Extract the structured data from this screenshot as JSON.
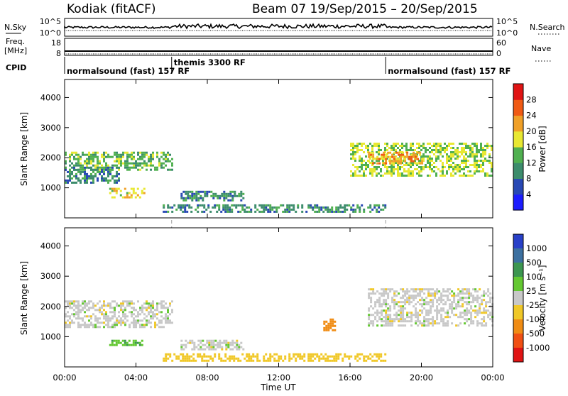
{
  "header": {
    "station": "Kodiak (fitACF)",
    "beam_info": "Beam 07  19/Sep/2015 – 20/Sep/2015"
  },
  "summary_panels": {
    "nsky_label": "N.Sky",
    "nsearch_label": "N.Search",
    "freq_label_line1": "Freq.",
    "freq_label_line2": "[MHz]",
    "nave_label": "Nave",
    "cpid_label": "CPID",
    "nsky_ticks": [
      "10^5",
      "10^0"
    ],
    "nsearch_ticks": [
      "10^5",
      "10^0"
    ],
    "freq_ticks": [
      "18",
      "8"
    ],
    "nave_ticks": [
      "60",
      "0"
    ]
  },
  "cpid_segments": [
    {
      "label": "normalsound (fast) 157 RF",
      "start_hour": 0,
      "end_hour": 6
    },
    {
      "label": "themis 3300 RF",
      "start_hour": 6,
      "end_hour": 18
    },
    {
      "label": "normalsound (fast) 157 RF",
      "start_hour": 18,
      "end_hour": 24
    }
  ],
  "chart_data": [
    {
      "type": "heatmap",
      "name": "power",
      "ylabel": "Slant Range [km]",
      "xlabel": "",
      "xlim_hours": [
        0,
        24
      ],
      "ylim": [
        0,
        4600
      ],
      "y_ticks": [
        "1000",
        "2000",
        "3000",
        "4000"
      ],
      "colorbar": {
        "label": "Power [dB]",
        "ticks": [
          "4",
          "8",
          "12",
          "16",
          "20",
          "24",
          "28"
        ],
        "colors": [
          "#1c1cff",
          "#2848b4",
          "#3c8c6c",
          "#50b050",
          "#e8e832",
          "#f0a028",
          "#f05a14",
          "#e01414"
        ]
      },
      "features": [
        {
          "t_start": 0,
          "t_end": 6,
          "range_start": 1600,
          "range_end": 2200,
          "power": 14
        },
        {
          "t_start": 0,
          "t_end": 3,
          "range_start": 1200,
          "range_end": 1700,
          "power": 10
        },
        {
          "t_start": 2.5,
          "t_end": 4.5,
          "range_start": 700,
          "range_end": 1000,
          "power": 18
        },
        {
          "t_start": 6.5,
          "t_end": 10,
          "range_start": 600,
          "range_end": 900,
          "power": 10
        },
        {
          "t_start": 5.5,
          "t_end": 18,
          "range_start": 200,
          "range_end": 450,
          "power": 10
        },
        {
          "t_start": 16,
          "t_end": 24,
          "range_start": 1400,
          "range_end": 2500,
          "power": 16
        },
        {
          "t_start": 17,
          "t_end": 20,
          "range_start": 1800,
          "range_end": 2200,
          "power": 22
        }
      ]
    },
    {
      "type": "heatmap",
      "name": "velocity",
      "ylabel": "Slant Range [km]",
      "xlabel": "Time UT",
      "xlim_hours": [
        0,
        24
      ],
      "ylim": [
        0,
        4600
      ],
      "x_ticks": [
        "00:00",
        "04:00",
        "08:00",
        "12:00",
        "16:00",
        "20:00",
        "00:00"
      ],
      "y_ticks": [
        "1000",
        "2000",
        "3000",
        "4000"
      ],
      "colorbar": {
        "label": "Velocity [m s⁻¹]",
        "ticks": [
          "1000",
          "500",
          "100",
          "25",
          "-25",
          "-100",
          "-500",
          "-1000"
        ],
        "colors": [
          "#2840c8",
          "#3c70a0",
          "#3c9650",
          "#64c832",
          "#c8c8c8",
          "#f0c828",
          "#f08c14",
          "#f05014",
          "#e01414"
        ]
      },
      "features": [
        {
          "t_start": 0,
          "t_end": 6,
          "range_start": 1300,
          "range_end": 2200,
          "velocity": 0
        },
        {
          "t_start": 2.5,
          "t_end": 4.5,
          "range_start": 700,
          "range_end": 900,
          "velocity": 80
        },
        {
          "t_start": 6.5,
          "t_end": 10,
          "range_start": 600,
          "range_end": 900,
          "velocity": 0
        },
        {
          "t_start": 5.5,
          "t_end": 18,
          "range_start": 200,
          "range_end": 450,
          "velocity": -60
        },
        {
          "t_start": 14.5,
          "t_end": 15.2,
          "range_start": 1200,
          "range_end": 1600,
          "velocity": -300
        },
        {
          "t_start": 17,
          "t_end": 24,
          "range_start": 1400,
          "range_end": 2600,
          "velocity": 0
        }
      ]
    }
  ]
}
